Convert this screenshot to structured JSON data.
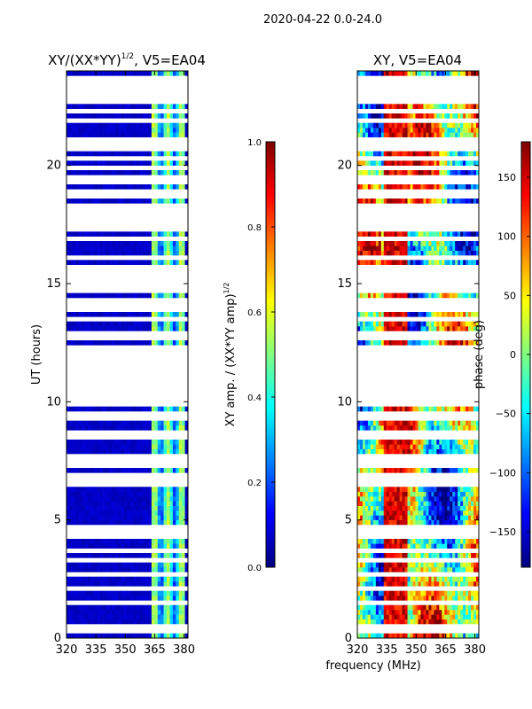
{
  "suptitle": "2020-04-22 0.0-24.0",
  "shared_xlabel": "frequency (MHz)",
  "colors": {
    "jet": [
      "#00007f",
      "#0000ff",
      "#0080ff",
      "#00ffff",
      "#80ff80",
      "#ffff00",
      "#ff8000",
      "#ff0000",
      "#7f0000"
    ]
  },
  "chart_data": [
    {
      "type": "heatmap",
      "title": "XY/(XX*YY)",
      "title_sup": "1/2",
      "title_suffix": ", V5=EA04",
      "ylabel": "UT (hours)",
      "xlim": [
        320,
        382
      ],
      "ylim": [
        0,
        24
      ],
      "xticks": [
        "320",
        "335",
        "350",
        "365",
        "380"
      ],
      "xtick_values": [
        320,
        335,
        350,
        365,
        380
      ],
      "yticks": [
        "0",
        "5",
        "10",
        "15",
        "20"
      ],
      "ytick_values": [
        0,
        5,
        10,
        15,
        20
      ],
      "colorbar": {
        "label": "XY amp. / (XX*YY amp)",
        "label_sup": "1/2",
        "range": [
          0.0,
          1.0
        ],
        "ticks": [
          "0.0",
          "0.2",
          "0.4",
          "0.6",
          "0.8",
          "1.0"
        ],
        "tick_values": [
          0.0,
          0.2,
          0.4,
          0.6,
          0.8,
          1.0
        ]
      },
      "blank_band_hours": [
        9.8,
        12.4
      ],
      "bright_band_mhz": [
        364,
        381
      ],
      "typical_value_low_band": 0.05,
      "typical_value_bright_band": 0.35
    },
    {
      "type": "heatmap",
      "title": "XY, V5=EA04",
      "ylabel": "phase (deg)",
      "xlim": [
        320,
        382
      ],
      "ylim": [
        0,
        24
      ],
      "xticks": [
        "320",
        "335",
        "350",
        "365",
        "380"
      ],
      "xtick_values": [
        320,
        335,
        350,
        365,
        380
      ],
      "yticks": [
        "0",
        "5",
        "10",
        "15",
        "20"
      ],
      "ytick_values": [
        0,
        5,
        10,
        15,
        20
      ],
      "colorbar": {
        "label": "phase (deg)",
        "range": [
          -180,
          180
        ],
        "ticks": [
          "−150",
          "−100",
          "−50",
          "0",
          "50",
          "100",
          "150"
        ],
        "tick_values": [
          -150,
          -100,
          -50,
          0,
          50,
          100,
          150
        ]
      },
      "blank_band_hours": [
        9.8,
        12.4
      ],
      "value_range": [
        -180,
        180
      ]
    }
  ],
  "flagged_gap_hours": [
    0.2,
    0.4,
    1.4,
    1.55,
    2.05,
    2.6,
    3.3,
    3.6,
    3.75,
    4.3,
    4.55,
    4.75,
    6.6,
    6.9,
    7.2,
    7.45,
    7.65,
    8.5,
    8.75,
    9.2,
    9.5,
    12.6,
    12.9,
    13.4,
    13.85,
    14.05,
    14.35,
    14.6,
    14.85,
    15.05,
    15.3,
    15.55,
    15.6,
    16.1,
    16.8,
    17.25,
    17.5,
    17.7,
    17.9,
    18.1,
    18.35,
    18.6,
    18.9,
    19.35,
    19.55,
    19.9,
    20.3,
    20.65,
    20.85,
    21.05,
    21.95,
    22.35,
    22.6,
    22.8,
    23.05,
    23.3,
    23.5,
    23.75
  ]
}
